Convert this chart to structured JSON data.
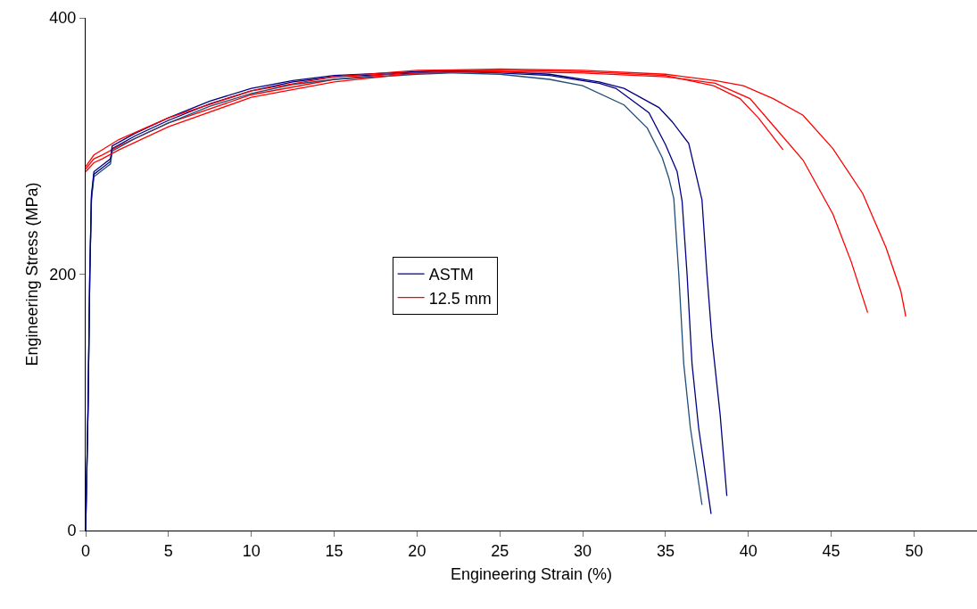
{
  "chart_data": {
    "type": "line",
    "xlabel": "Engineering Strain (%)",
    "ylabel": "Engineering Stress (MPa)",
    "xlim": [
      0,
      53.8
    ],
    "xticks": [
      0,
      5,
      10,
      15,
      20,
      25,
      30,
      35,
      40,
      45,
      50
    ],
    "ylim": [
      0,
      400
    ],
    "yticks": [
      0,
      200,
      400
    ],
    "grid": false,
    "legend": "center",
    "marker": "none",
    "line_style": "solid",
    "series": [
      {
        "name": "ASTM",
        "color": "#000080",
        "x": [
          0,
          0.15,
          0.25,
          0.35,
          0.5,
          1,
          1.5,
          1.6,
          3,
          5,
          7.5,
          10,
          12.5,
          15,
          20,
          22,
          25,
          28,
          31,
          32,
          34,
          35,
          35.7,
          36,
          36.3,
          36.6,
          37,
          37.75
        ],
        "values": [
          0,
          100,
          200,
          260,
          278,
          283,
          288,
          298,
          308,
          320,
          333,
          343,
          350,
          354,
          357,
          358,
          357,
          355,
          349,
          345,
          326,
          301,
          280,
          257,
          200,
          130,
          80,
          13
        ]
      },
      {
        "name": "12.5 mm",
        "color": "#ff0000",
        "x": [
          0,
          0.5,
          1,
          2,
          5,
          10,
          15,
          20,
          25,
          30,
          35,
          37.9,
          39.5,
          40.6,
          42.1
        ],
        "values": [
          282,
          290,
          293,
          300,
          318,
          340,
          352,
          358,
          359,
          358,
          355,
          347,
          337,
          322,
          297
        ]
      },
      {
        "color": "#1f4e79",
        "x": [
          0,
          0.15,
          0.25,
          0.35,
          0.5,
          1,
          1.5,
          1.6,
          3,
          5,
          7.5,
          10,
          12.5,
          15,
          20,
          22,
          25,
          28,
          30,
          32.5,
          33.9,
          34.8,
          35.2,
          35.5,
          35.8,
          36.1,
          36.5,
          37.2
        ],
        "values": [
          0,
          100,
          200,
          258,
          276,
          281,
          286,
          296,
          306,
          318,
          331,
          341,
          348,
          352,
          356,
          357,
          356,
          352,
          347,
          332,
          314,
          291,
          275,
          259,
          200,
          130,
          80,
          20
        ]
      },
      {
        "color": "#000080",
        "x": [
          0,
          0.15,
          0.25,
          0.35,
          0.5,
          1,
          1.5,
          1.6,
          3,
          5,
          7.5,
          10,
          12.5,
          15,
          20,
          22,
          25,
          28,
          31,
          32.5,
          34.6,
          35.4,
          36.4,
          37.2,
          37.5,
          37.8,
          38.3,
          38.7
        ],
        "values": [
          0,
          100,
          200,
          262,
          280,
          285,
          290,
          300,
          310,
          322,
          335,
          345,
          351,
          355,
          358,
          359,
          358,
          356,
          350,
          345,
          330,
          319,
          302,
          258,
          200,
          150,
          90,
          27
        ]
      },
      {
        "color": "#ff0000",
        "x": [
          0,
          0.5,
          1,
          2,
          5,
          10,
          15,
          20,
          25,
          30,
          35,
          38,
          40.1,
          41.5,
          43.3,
          45.1,
          46.2,
          47.2
        ],
        "values": [
          280,
          287,
          290,
          297,
          315,
          338,
          350,
          357,
          358,
          357,
          354,
          349,
          337,
          316,
          289,
          247,
          210,
          170
        ]
      },
      {
        "color": "#ff0000",
        "x": [
          0,
          0.5,
          1,
          2,
          5,
          10,
          15,
          20,
          25,
          30,
          35,
          38,
          39.7,
          41.5,
          43.3,
          45.1,
          46.9,
          48.3,
          49.2,
          49.5
        ],
        "values": [
          284,
          293,
          297,
          305,
          322,
          343,
          354,
          359,
          360,
          359,
          356,
          351,
          347,
          337,
          324,
          298,
          263,
          221,
          187,
          167
        ]
      }
    ]
  }
}
